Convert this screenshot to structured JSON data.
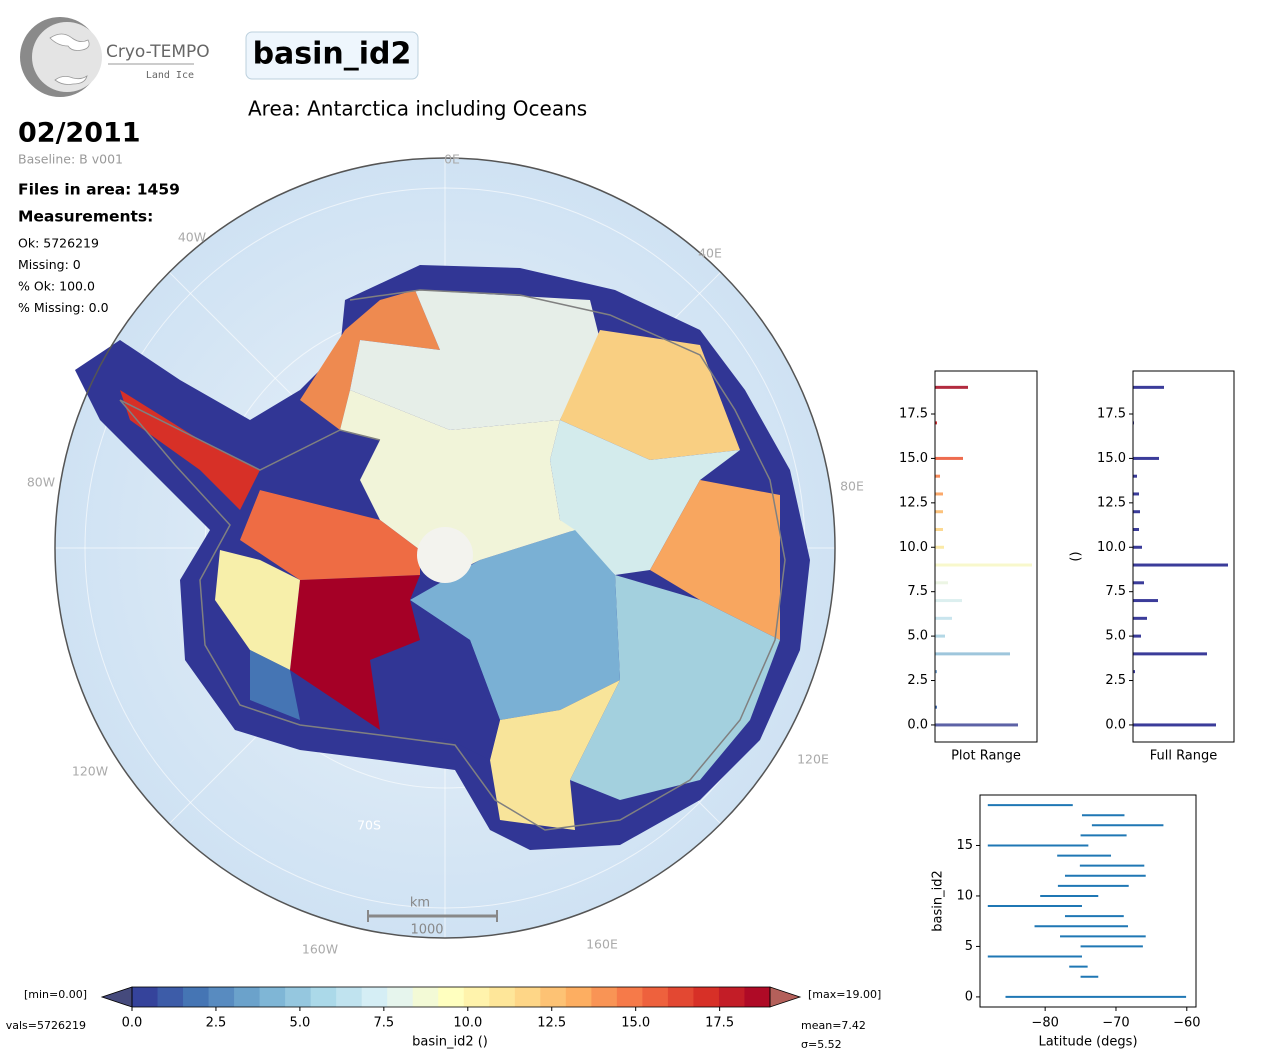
{
  "header": {
    "logo_title": "Cryo-TEMPO",
    "logo_subtitle": "Land Ice",
    "title": "basin_id2",
    "area": "Area: Antarctica including Oceans",
    "date": "02/2011",
    "baseline": "Baseline: B v001",
    "files": "Files in area: 1459",
    "measurements_heading": "Measurements:",
    "measurements": [
      "Ok: 5726219",
      "Missing: 0",
      "% Ok: 100.0",
      "% Missing: 0.0"
    ]
  },
  "map": {
    "longitude_labels": [
      "0E",
      "40E",
      "80E",
      "120E",
      "160E",
      "160W",
      "120W",
      "80W",
      "40W"
    ],
    "latitude_label": "70S",
    "scale_unit": "km",
    "scale_length": "1000"
  },
  "chart_data": [
    {
      "type": "colorbar",
      "xlabel": "basin_id2 ()",
      "xlim": [
        0,
        19
      ],
      "xticks": [
        {
          "value": 0,
          "label": "0.0"
        },
        2.5,
        {
          "value": 5,
          "label": "5.0"
        },
        7.5,
        {
          "value": 10,
          "label": "10.0"
        },
        12.5,
        {
          "value": 15,
          "label": "15.0"
        },
        17.5
      ],
      "colormap": [
        "#313695",
        "#4575b4",
        "#74add1",
        "#abd9e9",
        "#e0f3f8",
        "#ffffbf",
        "#fee090",
        "#fdae61",
        "#f46d43",
        "#d73027",
        "#a50026"
      ],
      "under_color": "#454a7c",
      "over_color": "#b4605a",
      "min_label": "[min=0.00]",
      "max_label": "[max=19.00]",
      "count_label": "vals=5726219",
      "stats_labels": [
        "mean=7.42",
        "σ=5.52"
      ]
    },
    {
      "type": "hbar",
      "xlabel": "Plot Range",
      "y": [
        0,
        1,
        2,
        3,
        4,
        5,
        6,
        7,
        8,
        9,
        10,
        11,
        12,
        13,
        14,
        15,
        16,
        17,
        18,
        19
      ],
      "values": [
        83,
        2,
        0,
        2,
        75,
        10,
        17,
        27,
        13,
        97,
        9,
        8,
        8,
        8,
        5,
        28,
        0,
        2,
        0,
        33
      ],
      "colors": [
        "#5d62a6",
        "#4a72b0",
        "#5a88be",
        "#7ba4cc",
        "#9ec6dc",
        "#b4d8e6",
        "#c9e5ee",
        "#dcefef",
        "#ecf5e4",
        "#f8f8cc",
        "#fbeaa8",
        "#fcd992",
        "#fcc27c",
        "#fba86a",
        "#f88b5a",
        "#ee6c4f",
        "#e24c40",
        "#cc3133",
        "#b81a35",
        "#b22b3f"
      ],
      "xlim": [
        0,
        102
      ],
      "ylim": [
        -0.96,
        19.92
      ],
      "yticks": [
        {
          "value": 0,
          "label": "0.0"
        },
        2.5,
        {
          "value": 5,
          "label": "5.0"
        },
        7.5,
        {
          "value": 10,
          "label": "10.0"
        },
        12.5,
        {
          "value": 15,
          "label": "15.0"
        },
        17.5
      ]
    },
    {
      "type": "hbar",
      "xlabel": "Full Range",
      "ylabel": "()",
      "y": [
        0,
        1,
        2,
        3,
        4,
        5,
        6,
        7,
        8,
        9,
        10,
        11,
        12,
        13,
        14,
        15,
        16,
        17,
        18,
        19
      ],
      "values": [
        83,
        0,
        0,
        2,
        74,
        8,
        14,
        25,
        11,
        95,
        9,
        6,
        7,
        6,
        4,
        26,
        0,
        1,
        0,
        31
      ],
      "color": "#3b3c9a",
      "xlim": [
        0,
        101
      ],
      "ylim": [
        -0.96,
        19.92
      ],
      "yticks": [
        {
          "value": 0,
          "label": "0.0"
        },
        2.5,
        {
          "value": 5,
          "label": "5.0"
        },
        7.5,
        {
          "value": 10,
          "label": "10.0"
        },
        12.5,
        {
          "value": 15,
          "label": "15.0"
        },
        17.5
      ]
    },
    {
      "type": "range",
      "xlabel": "Latitude (degs)",
      "ylabel": "basin_id2",
      "color": "#1f77b4",
      "y": [
        0,
        1,
        2,
        3,
        4,
        5,
        6,
        7,
        8,
        9,
        10,
        11,
        12,
        13,
        14,
        15,
        16,
        17,
        18,
        19
      ],
      "low": [
        -85.6,
        null,
        -75,
        -76.6,
        -88.1,
        -75,
        -77.9,
        -81.5,
        -77.2,
        -88.1,
        -80.7,
        -78.2,
        -77.2,
        -75.1,
        -78.3,
        -88.1,
        -75,
        -73.4,
        -74.8,
        -88.1
      ],
      "high": [
        -60.1,
        null,
        -72.5,
        -74,
        -74.8,
        -66.2,
        -65.8,
        -68.3,
        -68.9,
        -74.8,
        -72.5,
        -68.2,
        -65.8,
        -66,
        -70.7,
        -73.9,
        -68.5,
        -63.3,
        -68.8,
        -76.1
      ],
      "xlim": [
        -89.2,
        -58.7
      ],
      "ylim": [
        -1,
        20
      ],
      "xticks": [
        {
          "value": -80,
          "label": "−80"
        },
        {
          "value": -70,
          "label": "−70"
        },
        {
          "value": -60,
          "label": "−60"
        }
      ],
      "yticks": [
        0,
        5,
        10,
        15
      ]
    }
  ]
}
